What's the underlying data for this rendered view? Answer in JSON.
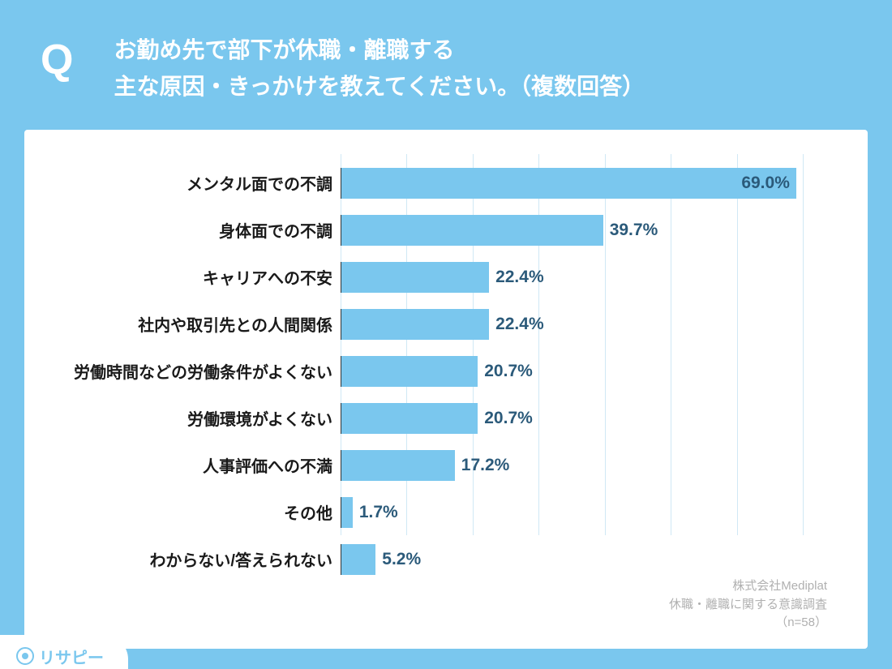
{
  "header": {
    "badge": "Q",
    "line1": "お勤め先で部下が休職・離職する",
    "line2": "主な原因・きっかけを教えてください。（複数回答）"
  },
  "chart": {
    "type": "bar",
    "orientation": "horizontal",
    "bar_color": "#7ac7ee",
    "grid_color": "#d0e8f5",
    "background_color": "#ffffff",
    "label_fontsize": 20,
    "value_fontsize": 21,
    "value_color": "#2b5a7a",
    "xmax": 70,
    "grid_step": 10,
    "bars": [
      {
        "label": "メンタル面での不調",
        "value": 69.0,
        "display": "69.0%",
        "value_inside": true
      },
      {
        "label": "身体面での不調",
        "value": 39.7,
        "display": "39.7%",
        "value_inside": false
      },
      {
        "label": "キャリアへの不安",
        "value": 22.4,
        "display": "22.4%",
        "value_inside": false
      },
      {
        "label": "社内や取引先との人間関係",
        "value": 22.4,
        "display": "22.4%",
        "value_inside": false
      },
      {
        "label": "労働時間などの労働条件がよくない",
        "value": 20.7,
        "display": "20.7%",
        "value_inside": false
      },
      {
        "label": "労働環境がよくない",
        "value": 20.7,
        "display": "20.7%",
        "value_inside": false
      },
      {
        "label": "人事評価への不満",
        "value": 17.2,
        "display": "17.2%",
        "value_inside": false
      },
      {
        "label": "その他",
        "value": 1.7,
        "display": "1.7%",
        "value_inside": false
      },
      {
        "label": "わからない/答えられない",
        "value": 5.2,
        "display": "5.2%",
        "value_inside": false
      }
    ]
  },
  "source": {
    "line1": "株式会社Mediplat",
    "line2": "休職・離職に関する意識調査",
    "line3": "（n=58）"
  },
  "logo": {
    "text": "リサピー"
  },
  "colors": {
    "page_bg": "#7ac7ee",
    "header_text": "#ffffff",
    "source_text": "#b0b0b0"
  }
}
